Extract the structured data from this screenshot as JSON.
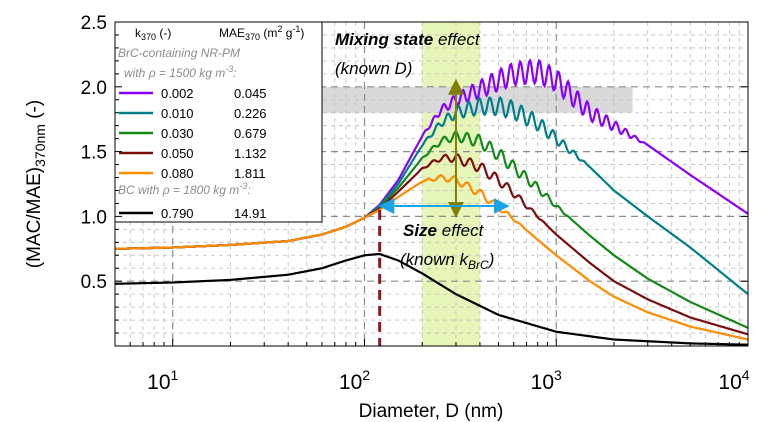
{
  "chart_data": {
    "type": "line",
    "xlabel": "Diameter, D (nm)",
    "ylabel_main": "(MAC/MAE)",
    "ylabel_sub": "370nm",
    "ylabel_suffix": " (-)",
    "xscale": "log",
    "xlim": [
      5,
      10000
    ],
    "ylim": [
      0,
      2.5
    ],
    "grid": true,
    "x_ticks": [
      {
        "value": 10,
        "base": "10",
        "exp": "1"
      },
      {
        "value": 100,
        "base": "10",
        "exp": "2"
      },
      {
        "value": 1000,
        "base": "10",
        "exp": "3"
      },
      {
        "value": 10000,
        "base": "10",
        "exp": "4"
      }
    ],
    "y_ticks": [
      {
        "value": 0.5,
        "label": "0.5"
      },
      {
        "value": 1.0,
        "label": "1.0"
      },
      {
        "value": 1.5,
        "label": "1.5"
      },
      {
        "value": 2.0,
        "label": "2.0"
      },
      {
        "value": 2.5,
        "label": "2.5"
      }
    ],
    "legend": {
      "placement": "top-left",
      "col1_header": "k",
      "col1_header_sub": "370",
      "col1_header_suffix": " (-)",
      "col2_header": "MAE",
      "col2_header_sub": "370",
      "col2_header_suffix": " (m",
      "col2_header_sup1": "2",
      "col2_header_mid": " g",
      "col2_header_sup2": "-1",
      "col2_header_end": ")",
      "group1_line1": "BrC-containing NR-PM",
      "group1_line2_prefix": "with ",
      "group1_line2_rho": "ρ",
      "group1_line2_rest": " = 1500 kg m",
      "group1_line2_sup": "-3",
      "group1_line2_end": ":",
      "group2_prefix": "BC with ",
      "group2_rho": "ρ",
      "group2_rest": " = 1800 kg m",
      "group2_sup": "-3",
      "group2_end": ":"
    },
    "series": [
      {
        "k": "0.002",
        "mae": "0.045",
        "color": "#8a00ff",
        "x": [
          5,
          10,
          20,
          40,
          60,
          80,
          100,
          120,
          150,
          200,
          250,
          300,
          400,
          500,
          600,
          800,
          1000,
          1500,
          2000,
          3000,
          5000,
          10000
        ],
        "y": [
          0.75,
          0.76,
          0.78,
          0.81,
          0.86,
          0.92,
          0.99,
          1.09,
          1.28,
          1.62,
          1.82,
          1.9,
          1.98,
          2.05,
          2.1,
          2.12,
          2.05,
          1.8,
          1.7,
          1.55,
          1.32,
          1.02
        ]
      },
      {
        "k": "0.010",
        "mae": "0.226",
        "color": "#007f8a",
        "x": [
          5,
          10,
          20,
          40,
          60,
          80,
          100,
          120,
          150,
          200,
          250,
          300,
          400,
          500,
          600,
          800,
          1000,
          1500,
          2000,
          3000,
          5000,
          10000
        ],
        "y": [
          0.75,
          0.76,
          0.78,
          0.81,
          0.86,
          0.92,
          0.99,
          1.08,
          1.25,
          1.55,
          1.72,
          1.8,
          1.85,
          1.85,
          1.82,
          1.72,
          1.6,
          1.38,
          1.2,
          1.0,
          0.76,
          0.4
        ]
      },
      {
        "k": "0.030",
        "mae": "0.679",
        "color": "#138a17",
        "x": [
          5,
          10,
          20,
          40,
          60,
          80,
          100,
          120,
          150,
          200,
          250,
          300,
          400,
          500,
          600,
          800,
          1000,
          1500,
          2000,
          3000,
          5000,
          10000
        ],
        "y": [
          0.75,
          0.76,
          0.78,
          0.81,
          0.86,
          0.92,
          0.99,
          1.07,
          1.22,
          1.45,
          1.58,
          1.62,
          1.58,
          1.48,
          1.38,
          1.22,
          1.08,
          0.85,
          0.7,
          0.52,
          0.34,
          0.14
        ]
      },
      {
        "k": "0.050",
        "mae": "1.132",
        "color": "#7a0e0e",
        "x": [
          5,
          10,
          20,
          40,
          60,
          80,
          100,
          120,
          150,
          200,
          250,
          300,
          400,
          500,
          600,
          800,
          1000,
          1500,
          2000,
          3000,
          5000,
          10000
        ],
        "y": [
          0.75,
          0.76,
          0.78,
          0.81,
          0.86,
          0.92,
          0.99,
          1.06,
          1.19,
          1.37,
          1.45,
          1.45,
          1.38,
          1.28,
          1.18,
          1.0,
          0.86,
          0.64,
          0.5,
          0.36,
          0.22,
          0.09
        ]
      },
      {
        "k": "0.080",
        "mae": "1.811",
        "color": "#ff8c00",
        "x": [
          5,
          10,
          20,
          40,
          60,
          80,
          100,
          120,
          150,
          200,
          250,
          300,
          400,
          500,
          600,
          800,
          1000,
          1500,
          2000,
          3000,
          5000,
          10000
        ],
        "y": [
          0.75,
          0.76,
          0.78,
          0.81,
          0.86,
          0.92,
          0.99,
          1.05,
          1.15,
          1.27,
          1.3,
          1.28,
          1.18,
          1.07,
          0.98,
          0.82,
          0.7,
          0.5,
          0.38,
          0.26,
          0.15,
          0.05
        ]
      },
      {
        "k": "0.790",
        "mae": "14.91",
        "color": "#000000",
        "x": [
          5,
          10,
          20,
          40,
          60,
          80,
          100,
          120,
          150,
          200,
          300,
          500,
          1000,
          2000,
          5000,
          10000
        ],
        "y": [
          0.48,
          0.49,
          0.51,
          0.55,
          0.6,
          0.66,
          0.7,
          0.71,
          0.66,
          0.56,
          0.4,
          0.24,
          0.11,
          0.05,
          0.02,
          0.01
        ]
      }
    ],
    "oscillations": [
      {
        "series": 0,
        "from": 190,
        "to": 3000,
        "amp": 0.09,
        "period": 0.05
      },
      {
        "series": 1,
        "from": 190,
        "to": 1500,
        "amp": 0.07,
        "period": 0.055
      },
      {
        "series": 2,
        "from": 190,
        "to": 1200,
        "amp": 0.05,
        "period": 0.06
      },
      {
        "series": 3,
        "from": 190,
        "to": 900,
        "amp": 0.04,
        "period": 0.065
      },
      {
        "series": 4,
        "from": 190,
        "to": 700,
        "amp": 0.03,
        "period": 0.07
      }
    ],
    "shaded": {
      "band_x": [
        200,
        400
      ],
      "band_color": "#e6f5b8",
      "box_x": [
        60,
        2500
      ],
      "box_y": [
        1.8,
        2.0
      ],
      "box_color": "#d9d9d9"
    },
    "cutoff_x": 120,
    "cutoff_color": "#8b1a1a",
    "annotations": {
      "mixing_title_bold": "Mixing state",
      "mixing_title_rest": " effect",
      "mixing_sub": "(known D)",
      "mixing_color": "#808000",
      "size_title_bold": "Size",
      "size_title_rest": " effect",
      "size_sub_prefix": "(known k",
      "size_sub_sub": "BrC",
      "size_sub_end": ")",
      "size_color": "#1aa3e8"
    }
  }
}
